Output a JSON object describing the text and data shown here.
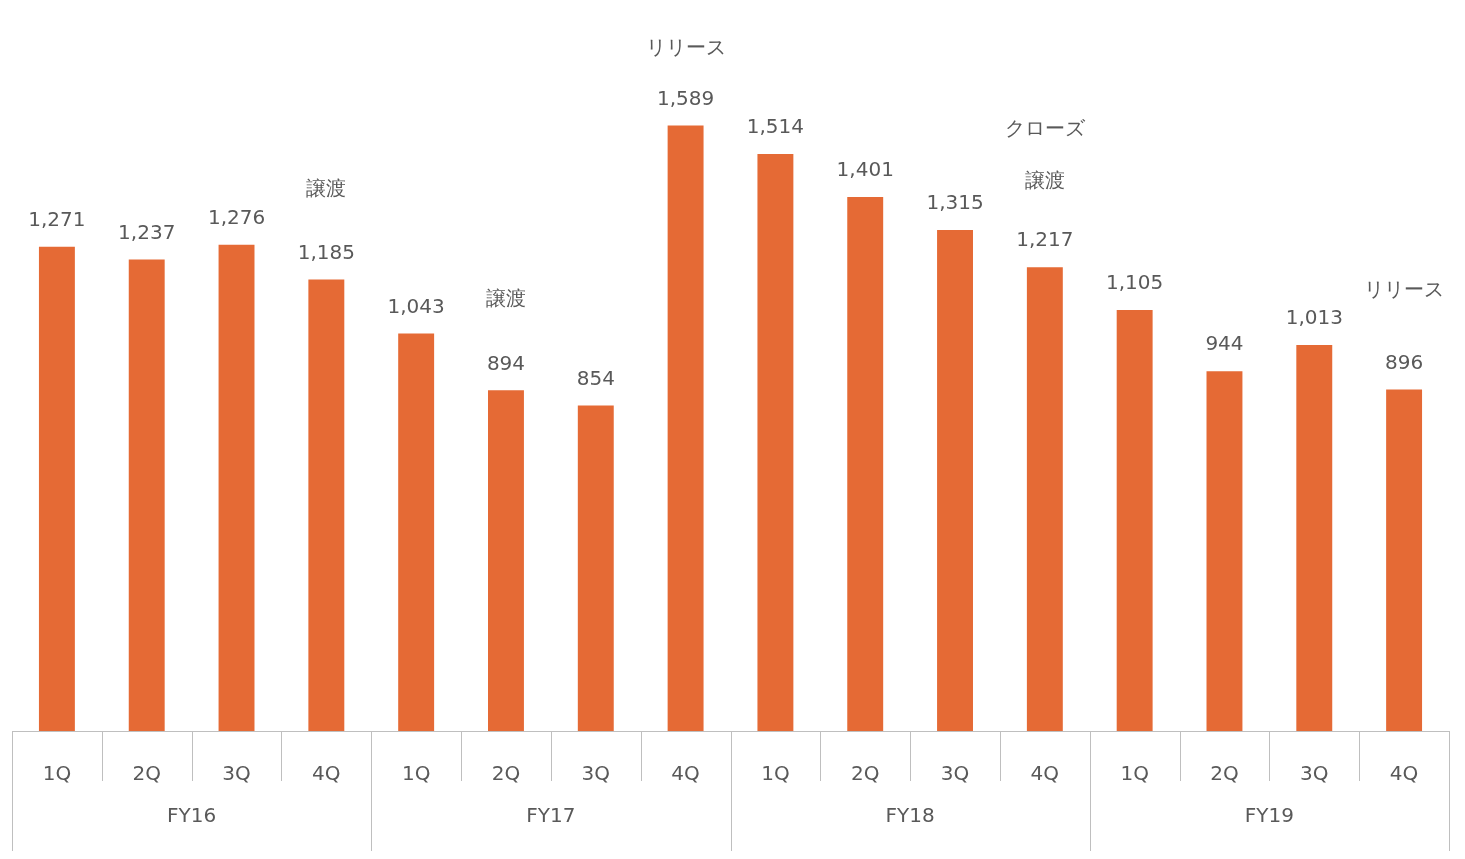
{
  "chart_data": {
    "type": "bar",
    "categories": [
      "1Q",
      "2Q",
      "3Q",
      "4Q",
      "1Q",
      "2Q",
      "3Q",
      "4Q",
      "1Q",
      "2Q",
      "3Q",
      "4Q",
      "1Q",
      "2Q",
      "3Q",
      "4Q"
    ],
    "values": [
      1271,
      1237,
      1276,
      1185,
      1043,
      894,
      854,
      1589,
      1514,
      1401,
      1315,
      1217,
      1105,
      944,
      1013,
      896
    ],
    "color": "#e56a35",
    "value_labels": [
      "1,271",
      "1,237",
      "1,276",
      "1,185",
      "1,043",
      "894",
      "854",
      "1,589",
      "1,514",
      "1,401",
      "1,315",
      "1,217",
      "1,105",
      "944",
      "1,013",
      "896"
    ],
    "annotations": [
      "譲渡",
      "譲渡",
      "リリース",
      "クローズ",
      "譲渡",
      "リリース",
      "FY16",
      "FY17",
      "FY18",
      "FY19"
    ]
  }
}
